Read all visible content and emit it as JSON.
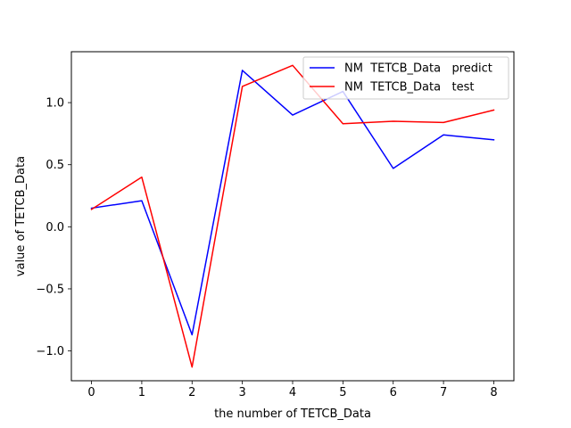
{
  "chart_data": {
    "type": "line",
    "title": "",
    "xlabel": "the number of TETCB_Data",
    "ylabel": "value of TETCB_Data",
    "x": [
      0,
      1,
      2,
      3,
      4,
      5,
      6,
      7,
      8
    ],
    "xlim": [
      -0.4,
      8.4
    ],
    "ylim": [
      -1.24,
      1.41
    ],
    "xticks": [
      0,
      1,
      2,
      3,
      4,
      5,
      6,
      7,
      8
    ],
    "yticks": [
      -1.0,
      -0.5,
      0.0,
      0.5,
      1.0
    ],
    "ytick_labels": [
      "−1.0",
      "−0.5",
      "0.0",
      "0.5",
      "1.0"
    ],
    "grid": false,
    "legend_position": "top-right",
    "series": [
      {
        "name": "NM  TETCB_Data   predict",
        "color": "#0000ff",
        "values": [
          0.15,
          0.21,
          -0.87,
          1.26,
          0.9,
          1.09,
          0.47,
          0.74,
          0.7
        ]
      },
      {
        "name": "NM  TETCB_Data   test",
        "color": "#ff0000",
        "values": [
          0.14,
          0.4,
          -1.13,
          1.13,
          1.3,
          0.83,
          0.85,
          0.84,
          0.94
        ]
      }
    ]
  }
}
